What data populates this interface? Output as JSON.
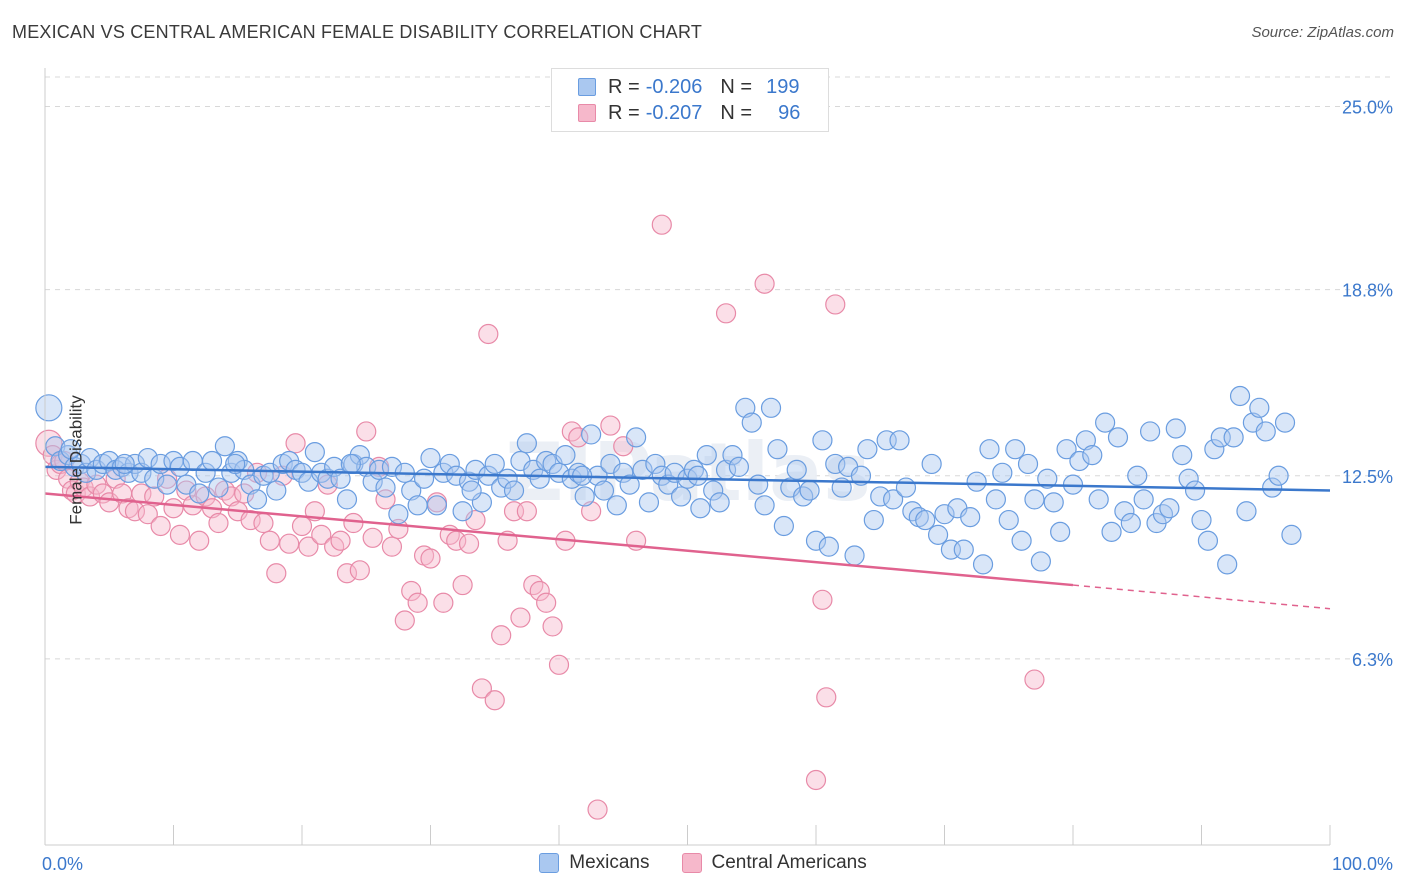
{
  "title": "MEXICAN VS CENTRAL AMERICAN FEMALE DISABILITY CORRELATION CHART",
  "source": "Source: ZipAtlas.com",
  "watermark": "ZIPatlas",
  "colors": {
    "blue_fill": "#aac8f0",
    "blue_stroke": "#6a9de0",
    "blue_line": "#3b78cc",
    "pink_fill": "#f6b8cb",
    "pink_stroke": "#e88aa8",
    "pink_line": "#e0628e",
    "tick_label": "#3b78cc",
    "grid": "#d8d8d8"
  },
  "legend": {
    "rows": [
      {
        "r_label": "R =",
        "r_value": "-0.206",
        "n_label": "N =",
        "n_value": "199"
      },
      {
        "r_label": "R =",
        "r_value": "-0.207",
        "n_label": "N =",
        "n_value": "96"
      }
    ]
  },
  "bottom_legend": {
    "mexicans": "Mexicans",
    "central_americans": "Central Americans"
  },
  "chart_data": {
    "type": "scatter",
    "ylabel": "Female Disability",
    "xlim": [
      0,
      100
    ],
    "ylim": [
      0,
      26.0
    ],
    "x_tick_labels": [
      "0.0%",
      "100.0%"
    ],
    "y_ticks": [
      6.3,
      12.5,
      18.8,
      25.0
    ],
    "y_tick_labels": [
      "6.3%",
      "12.5%",
      "18.8%",
      "25.0%"
    ],
    "grid": true,
    "legend_position": "top-center",
    "series": [
      {
        "name": "Mexicans",
        "r": -0.206,
        "n": 199,
        "trend": {
          "x0": 0,
          "y0": 12.8,
          "x1": 100,
          "y1": 12.0
        },
        "points": [
          [
            0.3,
            14.8
          ],
          [
            0.8,
            13.5
          ],
          [
            1.2,
            13.0
          ],
          [
            1.8,
            13.2
          ],
          [
            2.3,
            12.8
          ],
          [
            2.8,
            12.9
          ],
          [
            3.2,
            12.6
          ],
          [
            3.5,
            13.1
          ],
          [
            4.0,
            12.7
          ],
          [
            4.5,
            12.9
          ],
          [
            5.0,
            13.0
          ],
          [
            5.5,
            12.7
          ],
          [
            6.0,
            12.8
          ],
          [
            6.5,
            12.6
          ],
          [
            7.0,
            12.9
          ],
          [
            7.5,
            12.6
          ],
          [
            8.0,
            13.1
          ],
          [
            8.5,
            12.4
          ],
          [
            9.0,
            12.9
          ],
          [
            9.5,
            12.2
          ],
          [
            10.0,
            13.0
          ],
          [
            10.5,
            12.8
          ],
          [
            11.0,
            12.2
          ],
          [
            11.5,
            13.0
          ],
          [
            12.0,
            11.9
          ],
          [
            12.5,
            12.6
          ],
          [
            13.0,
            13.0
          ],
          [
            13.5,
            12.1
          ],
          [
            14.0,
            13.5
          ],
          [
            14.5,
            12.6
          ],
          [
            15.0,
            13.0
          ],
          [
            15.5,
            12.7
          ],
          [
            16.0,
            12.2
          ],
          [
            16.5,
            11.7
          ],
          [
            17.0,
            12.5
          ],
          [
            17.5,
            12.6
          ],
          [
            18.0,
            12.0
          ],
          [
            18.5,
            12.9
          ],
          [
            19.0,
            13.0
          ],
          [
            19.5,
            12.7
          ],
          [
            20.0,
            12.6
          ],
          [
            20.5,
            12.3
          ],
          [
            21.0,
            13.3
          ],
          [
            21.5,
            12.6
          ],
          [
            22.0,
            12.4
          ],
          [
            22.5,
            12.8
          ],
          [
            23.0,
            12.4
          ],
          [
            23.5,
            11.7
          ],
          [
            24.0,
            12.9
          ],
          [
            24.5,
            13.2
          ],
          [
            25.0,
            12.8
          ],
          [
            25.5,
            12.3
          ],
          [
            26.0,
            12.7
          ],
          [
            26.5,
            12.1
          ],
          [
            27.0,
            12.8
          ],
          [
            27.5,
            11.2
          ],
          [
            28.0,
            12.6
          ],
          [
            28.5,
            12.0
          ],
          [
            29.0,
            11.5
          ],
          [
            29.5,
            12.4
          ],
          [
            30.0,
            13.1
          ],
          [
            30.5,
            11.5
          ],
          [
            31.0,
            12.6
          ],
          [
            31.5,
            12.9
          ],
          [
            32.0,
            12.5
          ],
          [
            32.5,
            11.3
          ],
          [
            33.0,
            12.3
          ],
          [
            33.5,
            12.7
          ],
          [
            34.0,
            11.6
          ],
          [
            34.5,
            12.5
          ],
          [
            35.0,
            12.9
          ],
          [
            35.5,
            12.1
          ],
          [
            36.0,
            12.4
          ],
          [
            36.5,
            12.0
          ],
          [
            37.0,
            13.0
          ],
          [
            37.5,
            13.6
          ],
          [
            38.0,
            12.7
          ],
          [
            38.5,
            12.4
          ],
          [
            39.0,
            13.0
          ],
          [
            39.5,
            12.9
          ],
          [
            40.0,
            12.6
          ],
          [
            40.5,
            13.2
          ],
          [
            41.0,
            12.4
          ],
          [
            41.5,
            12.6
          ],
          [
            42.0,
            11.8
          ],
          [
            42.5,
            13.9
          ],
          [
            43.0,
            12.5
          ],
          [
            43.5,
            12.0
          ],
          [
            44.0,
            12.9
          ],
          [
            44.5,
            11.5
          ],
          [
            45.0,
            12.6
          ],
          [
            45.5,
            12.2
          ],
          [
            46.0,
            13.8
          ],
          [
            46.5,
            12.7
          ],
          [
            47.0,
            11.6
          ],
          [
            47.5,
            12.9
          ],
          [
            48.0,
            12.5
          ],
          [
            48.5,
            12.2
          ],
          [
            49.0,
            12.6
          ],
          [
            49.5,
            11.8
          ],
          [
            50.0,
            12.4
          ],
          [
            50.5,
            12.7
          ],
          [
            51.0,
            11.4
          ],
          [
            51.5,
            13.2
          ],
          [
            52.0,
            12.0
          ],
          [
            52.5,
            11.6
          ],
          [
            53.0,
            12.7
          ],
          [
            53.5,
            13.2
          ],
          [
            54.0,
            12.8
          ],
          [
            54.5,
            14.8
          ],
          [
            55.0,
            14.3
          ],
          [
            55.5,
            12.2
          ],
          [
            56.0,
            11.5
          ],
          [
            56.5,
            14.8
          ],
          [
            57.0,
            13.4
          ],
          [
            57.5,
            10.8
          ],
          [
            58.0,
            12.1
          ],
          [
            58.5,
            12.7
          ],
          [
            59.0,
            11.8
          ],
          [
            59.5,
            12.0
          ],
          [
            60.0,
            10.3
          ],
          [
            60.5,
            13.7
          ],
          [
            61.0,
            10.1
          ],
          [
            61.5,
            12.9
          ],
          [
            62.0,
            12.1
          ],
          [
            62.5,
            12.8
          ],
          [
            63.0,
            9.8
          ],
          [
            63.5,
            12.5
          ],
          [
            64.0,
            13.4
          ],
          [
            64.5,
            11.0
          ],
          [
            65.0,
            11.8
          ],
          [
            65.5,
            13.7
          ],
          [
            66.0,
            11.7
          ],
          [
            66.5,
            13.7
          ],
          [
            67.0,
            12.1
          ],
          [
            67.5,
            11.3
          ],
          [
            68.0,
            11.1
          ],
          [
            68.5,
            11.0
          ],
          [
            69.0,
            12.9
          ],
          [
            69.5,
            10.5
          ],
          [
            70.0,
            11.2
          ],
          [
            70.5,
            10.0
          ],
          [
            71.0,
            11.4
          ],
          [
            71.5,
            10.0
          ],
          [
            72.0,
            11.1
          ],
          [
            72.5,
            12.3
          ],
          [
            73.0,
            9.5
          ],
          [
            73.5,
            13.4
          ],
          [
            74.0,
            11.7
          ],
          [
            74.5,
            12.6
          ],
          [
            75.0,
            11.0
          ],
          [
            75.5,
            13.4
          ],
          [
            76.0,
            10.3
          ],
          [
            76.5,
            12.9
          ],
          [
            77.0,
            11.7
          ],
          [
            77.5,
            9.6
          ],
          [
            78.0,
            12.4
          ],
          [
            78.5,
            11.6
          ],
          [
            79.0,
            10.6
          ],
          [
            79.5,
            13.4
          ],
          [
            80.0,
            12.2
          ],
          [
            80.5,
            13.0
          ],
          [
            81.0,
            13.7
          ],
          [
            81.5,
            13.2
          ],
          [
            82.0,
            11.7
          ],
          [
            82.5,
            14.3
          ],
          [
            83.0,
            10.6
          ],
          [
            83.5,
            13.8
          ],
          [
            84.0,
            11.3
          ],
          [
            84.5,
            10.9
          ],
          [
            85.0,
            12.5
          ],
          [
            85.5,
            11.7
          ],
          [
            86.0,
            14.0
          ],
          [
            86.5,
            10.9
          ],
          [
            87.0,
            11.2
          ],
          [
            87.5,
            11.4
          ],
          [
            88.0,
            14.1
          ],
          [
            88.5,
            13.2
          ],
          [
            89.0,
            12.4
          ],
          [
            89.5,
            12.0
          ],
          [
            90.0,
            11.0
          ],
          [
            90.5,
            10.3
          ],
          [
            91.0,
            13.4
          ],
          [
            91.5,
            13.8
          ],
          [
            92.0,
            9.5
          ],
          [
            92.5,
            13.8
          ],
          [
            93.0,
            15.2
          ],
          [
            93.5,
            11.3
          ],
          [
            94.0,
            14.3
          ],
          [
            94.5,
            14.8
          ],
          [
            95.0,
            14.0
          ],
          [
            95.5,
            12.1
          ],
          [
            96.0,
            12.5
          ],
          [
            96.5,
            14.3
          ],
          [
            97.0,
            10.5
          ],
          [
            2.0,
            13.4
          ],
          [
            6.2,
            12.9
          ],
          [
            14.8,
            12.9
          ],
          [
            23.8,
            12.9
          ],
          [
            33.2,
            12.0
          ],
          [
            41.8,
            12.5
          ],
          [
            50.8,
            12.5
          ]
        ]
      },
      {
        "name": "Central Americans",
        "r": -0.207,
        "n": 96,
        "trend": {
          "x0": 0,
          "y0": 11.9,
          "x1": 80,
          "y1": 8.8,
          "x_dash_end": 100,
          "y_dash_end": 8.0
        },
        "points": [
          [
            0.3,
            13.6
          ],
          [
            0.6,
            13.2
          ],
          [
            0.9,
            12.7
          ],
          [
            1.2,
            12.9
          ],
          [
            1.5,
            13.0
          ],
          [
            1.8,
            12.4
          ],
          [
            2.1,
            12.0
          ],
          [
            2.4,
            11.9
          ],
          [
            2.7,
            12.3
          ],
          [
            3.0,
            12.1
          ],
          [
            3.5,
            11.8
          ],
          [
            4.0,
            12.2
          ],
          [
            4.5,
            11.9
          ],
          [
            5.0,
            11.6
          ],
          [
            5.5,
            12.4
          ],
          [
            6.0,
            11.9
          ],
          [
            6.5,
            11.4
          ],
          [
            7.0,
            11.3
          ],
          [
            7.5,
            11.9
          ],
          [
            8.0,
            11.2
          ],
          [
            8.5,
            11.8
          ],
          [
            9.0,
            10.8
          ],
          [
            9.5,
            12.4
          ],
          [
            10.0,
            11.4
          ],
          [
            10.5,
            10.5
          ],
          [
            11.0,
            12.0
          ],
          [
            11.5,
            11.5
          ],
          [
            12.0,
            10.3
          ],
          [
            12.5,
            11.8
          ],
          [
            13.0,
            11.4
          ],
          [
            13.5,
            10.9
          ],
          [
            14.0,
            12.0
          ],
          [
            14.5,
            11.8
          ],
          [
            15.0,
            11.3
          ],
          [
            15.5,
            11.9
          ],
          [
            16.0,
            11.0
          ],
          [
            16.5,
            12.6
          ],
          [
            17.0,
            10.9
          ],
          [
            17.5,
            10.3
          ],
          [
            18.0,
            9.2
          ],
          [
            18.5,
            12.5
          ],
          [
            19.0,
            10.2
          ],
          [
            19.5,
            13.6
          ],
          [
            20.0,
            10.8
          ],
          [
            20.5,
            10.1
          ],
          [
            21.0,
            11.3
          ],
          [
            21.5,
            10.5
          ],
          [
            22.0,
            12.2
          ],
          [
            22.5,
            10.1
          ],
          [
            23.0,
            10.3
          ],
          [
            23.5,
            9.2
          ],
          [
            24.0,
            10.9
          ],
          [
            24.5,
            9.3
          ],
          [
            25.0,
            14.0
          ],
          [
            25.5,
            10.4
          ],
          [
            26.0,
            12.8
          ],
          [
            26.5,
            11.7
          ],
          [
            27.0,
            10.1
          ],
          [
            27.5,
            10.7
          ],
          [
            28.0,
            7.6
          ],
          [
            28.5,
            8.6
          ],
          [
            29.0,
            8.2
          ],
          [
            29.5,
            9.8
          ],
          [
            30.0,
            9.7
          ],
          [
            30.5,
            11.6
          ],
          [
            31.0,
            8.2
          ],
          [
            31.5,
            10.5
          ],
          [
            32.0,
            10.3
          ],
          [
            32.5,
            8.8
          ],
          [
            33.0,
            10.2
          ],
          [
            33.5,
            11.0
          ],
          [
            34.0,
            5.3
          ],
          [
            34.5,
            17.3
          ],
          [
            35.0,
            4.9
          ],
          [
            35.5,
            7.1
          ],
          [
            36.0,
            10.3
          ],
          [
            36.5,
            11.3
          ],
          [
            37.0,
            7.7
          ],
          [
            37.5,
            11.3
          ],
          [
            38.0,
            8.8
          ],
          [
            38.5,
            8.6
          ],
          [
            39.0,
            8.2
          ],
          [
            39.5,
            7.4
          ],
          [
            40.0,
            6.1
          ],
          [
            40.5,
            10.3
          ],
          [
            41.0,
            14.0
          ],
          [
            41.5,
            13.8
          ],
          [
            42.5,
            11.3
          ],
          [
            43.0,
            1.2
          ],
          [
            44.0,
            14.2
          ],
          [
            45.0,
            13.5
          ],
          [
            46.0,
            10.3
          ],
          [
            48.0,
            21.0
          ],
          [
            53.0,
            18.0
          ],
          [
            56.0,
            19.0
          ],
          [
            60.0,
            2.2
          ],
          [
            60.5,
            8.3
          ],
          [
            60.8,
            5.0
          ],
          [
            61.5,
            18.3
          ],
          [
            77.0,
            5.6
          ]
        ]
      }
    ]
  }
}
